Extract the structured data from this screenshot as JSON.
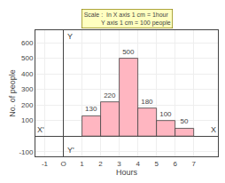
{
  "chart_data": {
    "type": "histogram",
    "bins": [
      1,
      2,
      3,
      4,
      5,
      6,
      7
    ],
    "values": [
      130,
      220,
      500,
      180,
      100,
      50
    ],
    "color": "#ffb6c1",
    "data_labels": true,
    "xlabel": "Hours",
    "ylabel": "No. of people",
    "xlim": [
      -1.5,
      8.3
    ],
    "ylim": [
      -130,
      680
    ],
    "xticks": [
      -1,
      {
        "value": 0,
        "label": "O"
      },
      1,
      2,
      3,
      4,
      5,
      6,
      7
    ],
    "yticks": [
      -100,
      100,
      200,
      300,
      400,
      500,
      600
    ],
    "grid": true,
    "annotations": [
      "X",
      "X'",
      "Y",
      "Y'",
      "Scale :  In X axis 1 cm = 1hour\n          Y axis 1 cm = 100 people"
    ]
  }
}
